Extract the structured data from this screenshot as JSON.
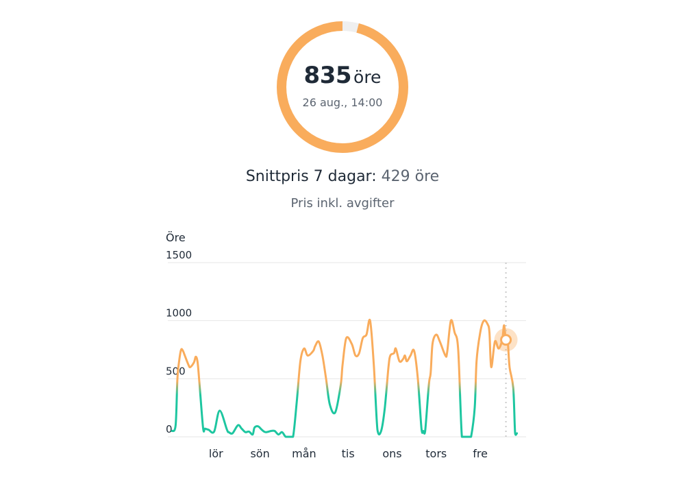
{
  "gauge": {
    "value": "835",
    "unit": "öre",
    "timestamp": "26 aug., 14:00",
    "fill_fraction": 0.96,
    "color": "#f9ac5c",
    "track_color": "#efefef"
  },
  "summary": {
    "label": "Snittpris 7 dagar:",
    "value": "429 öre"
  },
  "subtitle": "Pris inkl. avgifter",
  "chart_data": {
    "type": "line",
    "ylabel": "Öre",
    "ylim": [
      0,
      1500
    ],
    "yticks": [
      0,
      500,
      1000,
      1500
    ],
    "xticks": [
      "lör",
      "sön",
      "mån",
      "tis",
      "ons",
      "tors",
      "fre"
    ],
    "xticks_at_hour": [
      24,
      48,
      72,
      96,
      120,
      144,
      168
    ],
    "grid": true,
    "high_color": "#f9ac5c",
    "low_color": "#1dc6a0",
    "threshold": 450,
    "highlight": {
      "hour": 182,
      "value": 835
    },
    "series": [
      {
        "hours": [
          0,
          2,
          3,
          4,
          5,
          6,
          7,
          9,
          10,
          12,
          13,
          14,
          15,
          17,
          18,
          20,
          23,
          26,
          30,
          31,
          33,
          36,
          38,
          40,
          42,
          44,
          45,
          47,
          49,
          51,
          54,
          56,
          58,
          60,
          62,
          64,
          66,
          68,
          70,
          72,
          74,
          77,
          78,
          80,
          82,
          84,
          86,
          89,
          92,
          93,
          95,
          98,
          100,
          102,
          104,
          106,
          108,
          110,
          112,
          114,
          116,
          118,
          119,
          121,
          122,
          124,
          126,
          127,
          128,
          130,
          132,
          134,
          136,
          137,
          138,
          140,
          141,
          142,
          144,
          146,
          149,
          150,
          152,
          154,
          156,
          158,
          160,
          162,
          163,
          165,
          166,
          168,
          170,
          172,
          173,
          174,
          176,
          178,
          180,
          181,
          182,
          183,
          184,
          186,
          187,
          188
        ],
        "values": [
          50,
          100,
          500,
          660,
          750,
          740,
          700,
          620,
          600,
          640,
          690,
          640,
          460,
          75,
          70,
          60,
          45,
          225,
          60,
          40,
          30,
          100,
          70,
          40,
          45,
          20,
          80,
          90,
          60,
          40,
          50,
          50,
          20,
          40,
          0,
          0,
          0,
          300,
          650,
          760,
          700,
          740,
          780,
          820,
          700,
          500,
          280,
          210,
          450,
          620,
          850,
          800,
          700,
          720,
          850,
          880,
          1000,
          620,
          60,
          50,
          250,
          600,
          700,
          720,
          760,
          650,
          670,
          700,
          650,
          700,
          740,
          500,
          70,
          50,
          50,
          450,
          550,
          800,
          880,
          820,
          700,
          730,
          1000,
          900,
          750,
          0,
          0,
          0,
          0,
          250,
          650,
          900,
          1000,
          970,
          900,
          600,
          820,
          760,
          835,
          960,
          820,
          820,
          600,
          420,
          30,
          30
        ]
      }
    ]
  }
}
